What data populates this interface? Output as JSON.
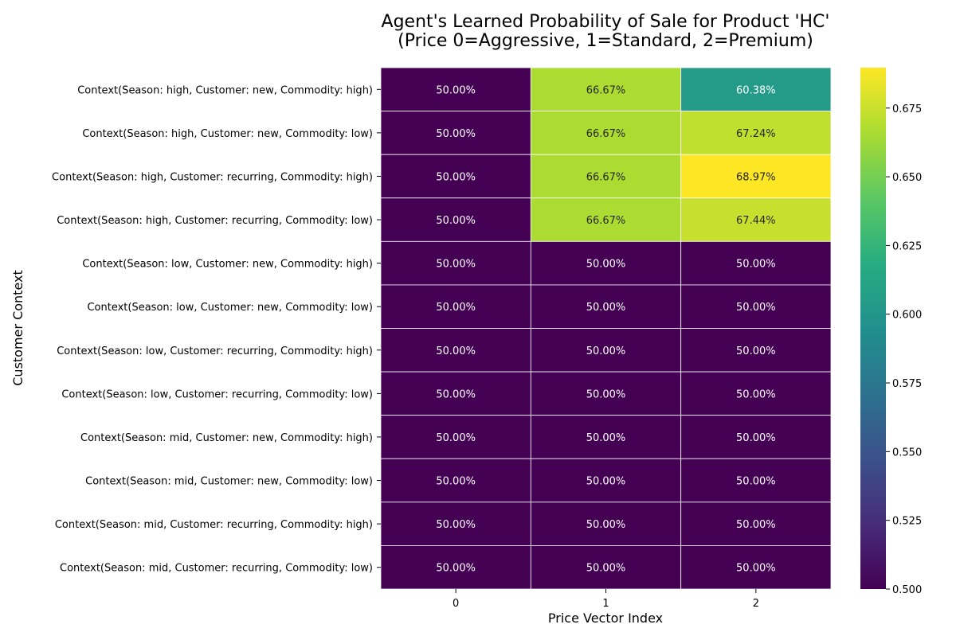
{
  "chart_data": {
    "type": "heatmap",
    "title_lines": [
      "Agent's Learned Probability of Sale for Product 'HC'",
      "(Price 0=Aggressive, 1=Standard, 2=Premium)"
    ],
    "xlabel": "Price Vector Index",
    "ylabel": "Customer Context",
    "x_categories": [
      "0",
      "1",
      "2"
    ],
    "y_categories": [
      "Context(Season: high, Customer: new, Commodity: high)",
      "Context(Season: high, Customer: new, Commodity: low)",
      "Context(Season: high, Customer: recurring, Commodity: high)",
      "Context(Season: high, Customer: recurring, Commodity: low)",
      "Context(Season: low, Customer: new, Commodity: high)",
      "Context(Season: low, Customer: new, Commodity: low)",
      "Context(Season: low, Customer: recurring, Commodity: high)",
      "Context(Season: low, Customer: recurring, Commodity: low)",
      "Context(Season: mid, Customer: new, Commodity: high)",
      "Context(Season: mid, Customer: new, Commodity: low)",
      "Context(Season: mid, Customer: recurring, Commodity: high)",
      "Context(Season: mid, Customer: recurring, Commodity: low)"
    ],
    "values": [
      [
        0.5,
        0.6667,
        0.6038
      ],
      [
        0.5,
        0.6667,
        0.6724
      ],
      [
        0.5,
        0.6667,
        0.6897
      ],
      [
        0.5,
        0.6667,
        0.6744
      ],
      [
        0.5,
        0.5,
        0.5
      ],
      [
        0.5,
        0.5,
        0.5
      ],
      [
        0.5,
        0.5,
        0.5
      ],
      [
        0.5,
        0.5,
        0.5
      ],
      [
        0.5,
        0.5,
        0.5
      ],
      [
        0.5,
        0.5,
        0.5
      ],
      [
        0.5,
        0.5,
        0.5
      ],
      [
        0.5,
        0.5,
        0.5
      ]
    ],
    "cell_labels": [
      [
        "50.00%",
        "66.67%",
        "60.38%"
      ],
      [
        "50.00%",
        "66.67%",
        "67.24%"
      ],
      [
        "50.00%",
        "66.67%",
        "68.97%"
      ],
      [
        "50.00%",
        "66.67%",
        "67.44%"
      ],
      [
        "50.00%",
        "50.00%",
        "50.00%"
      ],
      [
        "50.00%",
        "50.00%",
        "50.00%"
      ],
      [
        "50.00%",
        "50.00%",
        "50.00%"
      ],
      [
        "50.00%",
        "50.00%",
        "50.00%"
      ],
      [
        "50.00%",
        "50.00%",
        "50.00%"
      ],
      [
        "50.00%",
        "50.00%",
        "50.00%"
      ],
      [
        "50.00%",
        "50.00%",
        "50.00%"
      ],
      [
        "50.00%",
        "50.00%",
        "50.00%"
      ]
    ],
    "colorscale": "viridis",
    "color_range": [
      0.5,
      0.6897
    ],
    "colorbar_ticks": [
      "0.500",
      "0.525",
      "0.550",
      "0.575",
      "0.600",
      "0.625",
      "0.650",
      "0.675"
    ],
    "grid": true,
    "legend": "colorbar-right"
  }
}
